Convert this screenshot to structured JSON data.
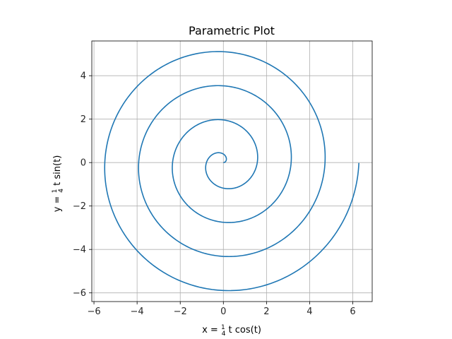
{
  "chart_data": {
    "type": "line",
    "title": "Parametric Plot",
    "xlabel": {
      "prefix": "x = ",
      "frac_num": "1",
      "frac_den": "4",
      "suffix": " t cos(t)"
    },
    "ylabel": {
      "prefix": "y = ",
      "frac_num": "1",
      "frac_den": "4",
      "suffix": " t sin(t)"
    },
    "xlim": [
      -6.1,
      6.9
    ],
    "ylim": [
      -6.4,
      5.6
    ],
    "xticks": [
      -6,
      -4,
      -2,
      0,
      2,
      4,
      6
    ],
    "yticks": [
      -6,
      -4,
      -2,
      0,
      2,
      4
    ],
    "xtick_labels": [
      "−6",
      "−4",
      "−2",
      "0",
      "2",
      "4",
      "6"
    ],
    "ytick_labels": [
      "−6",
      "−4",
      "−2",
      "0",
      "2",
      "4"
    ],
    "grid": true,
    "aspect": "equal",
    "series": [
      {
        "equation_x": "x = (1/4) t cos(t)",
        "equation_y": "y = (1/4) t sin(t)",
        "coefficient": 0.25,
        "t_range": [
          0,
          25.13
        ],
        "color": "#1f77b4"
      }
    ]
  }
}
